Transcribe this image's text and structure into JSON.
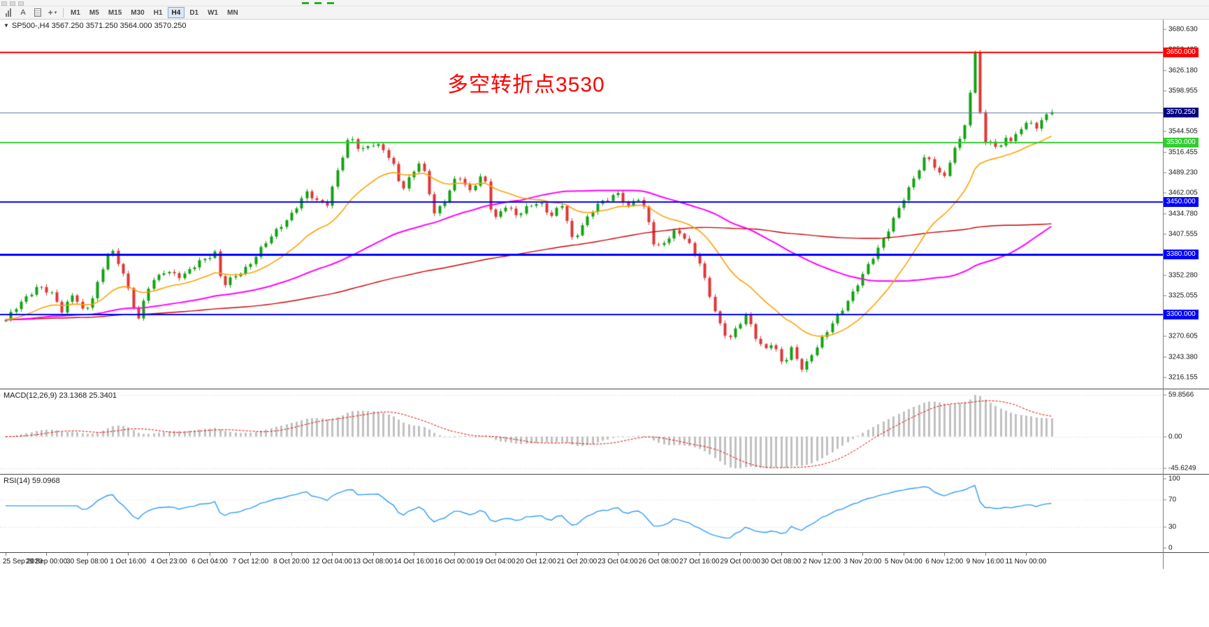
{
  "icons": {
    "collapse_arrow": "▼",
    "dropdown_arrow": "▾"
  },
  "toolbar": {
    "text_tool_label": "A",
    "timeframes": [
      {
        "label": "M1",
        "active": false
      },
      {
        "label": "M5",
        "active": false
      },
      {
        "label": "M15",
        "active": false
      },
      {
        "label": "M30",
        "active": false
      },
      {
        "label": "H1",
        "active": false
      },
      {
        "label": "H4",
        "active": true
      },
      {
        "label": "D1",
        "active": false
      },
      {
        "label": "W1",
        "active": false
      },
      {
        "label": "MN",
        "active": false
      }
    ]
  },
  "chart_data": {
    "type": "candlestick",
    "symbol": "SP500-",
    "period": "H4",
    "header": "SP500-,H4  3567.250 3571.250 3564.000 3570.250",
    "ohlc": {
      "open": 3567.25,
      "high": 3571.25,
      "low": 3564.0,
      "close": 3570.25
    },
    "annotation": {
      "text": "多空转折点3530",
      "color": "#FF0000"
    },
    "price_axis": {
      "min": 3201.0,
      "max": 3694.0,
      "ticks": [
        "3680.630",
        "3653.405",
        "3626.180",
        "3598.955",
        "3571.730",
        "3544.505",
        "3516.455",
        "3489.230",
        "3462.005",
        "3434.780",
        "3407.555",
        "3380.330",
        "3352.280",
        "3325.055",
        "3297.830",
        "3270.605",
        "3243.380",
        "3216.155"
      ]
    },
    "hlines": [
      {
        "price": 3650.0,
        "label": "3650.000",
        "color": "#FF0000",
        "width": 2
      },
      {
        "price": 3530.0,
        "label": "3530.000",
        "color": "#32CD32",
        "width": 2
      },
      {
        "price": 3450.0,
        "label": "3450.000",
        "color": "#0000FF",
        "width": 2
      },
      {
        "price": 3380.0,
        "label": "3380.000",
        "color": "#0000FF",
        "width": 3
      },
      {
        "price": 3300.0,
        "label": "3300.000",
        "color": "#0000FF",
        "width": 2
      }
    ],
    "bid_line": {
      "price": 3570.25,
      "label": "3570.250",
      "line_color": "#5F7A96",
      "tag_color": "#000080"
    },
    "candles": {
      "count": 206,
      "up_color": "#12A112",
      "down_color": "#E03535",
      "price_path": [
        [
          0.0,
          3293
        ],
        [
          0.031,
          3340
        ],
        [
          0.045,
          3326
        ],
        [
          0.053,
          3302
        ],
        [
          0.065,
          3330
        ],
        [
          0.075,
          3302
        ],
        [
          0.085,
          3328
        ],
        [
          0.1,
          3390
        ],
        [
          0.112,
          3358
        ],
        [
          0.126,
          3290
        ],
        [
          0.138,
          3342
        ],
        [
          0.152,
          3360
        ],
        [
          0.168,
          3348
        ],
        [
          0.185,
          3372
        ],
        [
          0.2,
          3382
        ],
        [
          0.207,
          3336
        ],
        [
          0.216,
          3348
        ],
        [
          0.232,
          3366
        ],
        [
          0.247,
          3392
        ],
        [
          0.262,
          3418
        ],
        [
          0.275,
          3438
        ],
        [
          0.287,
          3462
        ],
        [
          0.297,
          3452
        ],
        [
          0.307,
          3448
        ],
        [
          0.317,
          3492
        ],
        [
          0.329,
          3538
        ],
        [
          0.339,
          3518
        ],
        [
          0.349,
          3530
        ],
        [
          0.359,
          3524
        ],
        [
          0.37,
          3500
        ],
        [
          0.379,
          3466
        ],
        [
          0.389,
          3492
        ],
        [
          0.397,
          3506
        ],
        [
          0.403,
          3472
        ],
        [
          0.41,
          3432
        ],
        [
          0.421,
          3456
        ],
        [
          0.432,
          3490
        ],
        [
          0.443,
          3462
        ],
        [
          0.457,
          3488
        ],
        [
          0.466,
          3426
        ],
        [
          0.477,
          3446
        ],
        [
          0.489,
          3430
        ],
        [
          0.5,
          3446
        ],
        [
          0.51,
          3452
        ],
        [
          0.521,
          3430
        ],
        [
          0.532,
          3446
        ],
        [
          0.542,
          3400
        ],
        [
          0.552,
          3422
        ],
        [
          0.564,
          3444
        ],
        [
          0.574,
          3452
        ],
        [
          0.585,
          3464
        ],
        [
          0.595,
          3444
        ],
        [
          0.604,
          3456
        ],
        [
          0.613,
          3432
        ],
        [
          0.621,
          3388
        ],
        [
          0.631,
          3400
        ],
        [
          0.641,
          3412
        ],
        [
          0.652,
          3396
        ],
        [
          0.663,
          3372
        ],
        [
          0.672,
          3332
        ],
        [
          0.681,
          3290
        ],
        [
          0.691,
          3264
        ],
        [
          0.7,
          3286
        ],
        [
          0.708,
          3302
        ],
        [
          0.717,
          3270
        ],
        [
          0.725,
          3250
        ],
        [
          0.733,
          3262
        ],
        [
          0.743,
          3234
        ],
        [
          0.751,
          3256
        ],
        [
          0.762,
          3224
        ],
        [
          0.771,
          3246
        ],
        [
          0.781,
          3270
        ],
        [
          0.791,
          3292
        ],
        [
          0.8,
          3306
        ],
        [
          0.811,
          3330
        ],
        [
          0.822,
          3362
        ],
        [
          0.831,
          3382
        ],
        [
          0.842,
          3406
        ],
        [
          0.852,
          3436
        ],
        [
          0.862,
          3466
        ],
        [
          0.871,
          3490
        ],
        [
          0.88,
          3512
        ],
        [
          0.888,
          3496
        ],
        [
          0.896,
          3480
        ],
        [
          0.904,
          3512
        ],
        [
          0.912,
          3536
        ],
        [
          0.919,
          3560
        ],
        [
          0.923,
          3604
        ],
        [
          0.9265,
          3656
        ],
        [
          0.931,
          3576
        ],
        [
          0.937,
          3524
        ],
        [
          0.943,
          3538
        ],
        [
          0.949,
          3516
        ],
        [
          0.955,
          3540
        ],
        [
          0.962,
          3528
        ],
        [
          0.97,
          3548
        ],
        [
          0.978,
          3558
        ],
        [
          0.986,
          3552
        ],
        [
          0.994,
          3566
        ],
        [
          1.0,
          3570.25
        ]
      ]
    },
    "moving_averages": [
      {
        "type": "sma",
        "period": 130,
        "color": "#CC0000",
        "width": 1.4
      },
      {
        "type": "sma",
        "period": 60,
        "color": "#FF00FF",
        "width": 2
      },
      {
        "type": "ema",
        "period": 20,
        "color": "#FFA000",
        "width": 1.6
      }
    ],
    "x_labels": [
      "25 Sep 2020",
      "29 Sep 00:00",
      "30 Sep 08:00",
      "1 Oct 16:00",
      "4 Oct 23:00",
      "6 Oct 04:00",
      "7 Oct 12:00",
      "8 Oct 20:00",
      "12 Oct 04:00",
      "13 Oct 08:00",
      "14 Oct 16:00",
      "16 Oct 00:00",
      "19 Oct 04:00",
      "20 Oct 12:00",
      "21 Oct 20:00",
      "23 Oct 04:00",
      "26 Oct 08:00",
      "27 Oct 16:00",
      "29 Oct 00:00",
      "30 Oct 08:00",
      "2 Nov 12:00",
      "3 Nov 20:00",
      "5 Nov 04:00",
      "6 Nov 12:00",
      "9 Nov 16:00",
      "11 Nov 00:00"
    ],
    "indicators": [
      {
        "name": "MACD",
        "label": "MACD(12,26,9) 23.1368 25.3401",
        "main_value": 23.1368,
        "signal_value": 25.3401,
        "axis_max": "59.8566",
        "axis_zero": "0.00",
        "axis_min": "-45.6249",
        "histogram_color": "#C0C0C0",
        "signal_color": "#E00000"
      },
      {
        "name": "RSI",
        "label": "RSI(14) 59.0968",
        "value": 59.0968,
        "axis_labels": [
          "100",
          "70",
          "30",
          "0"
        ],
        "levels": [
          70,
          30
        ],
        "line_color": "#2E9AFE"
      }
    ]
  }
}
